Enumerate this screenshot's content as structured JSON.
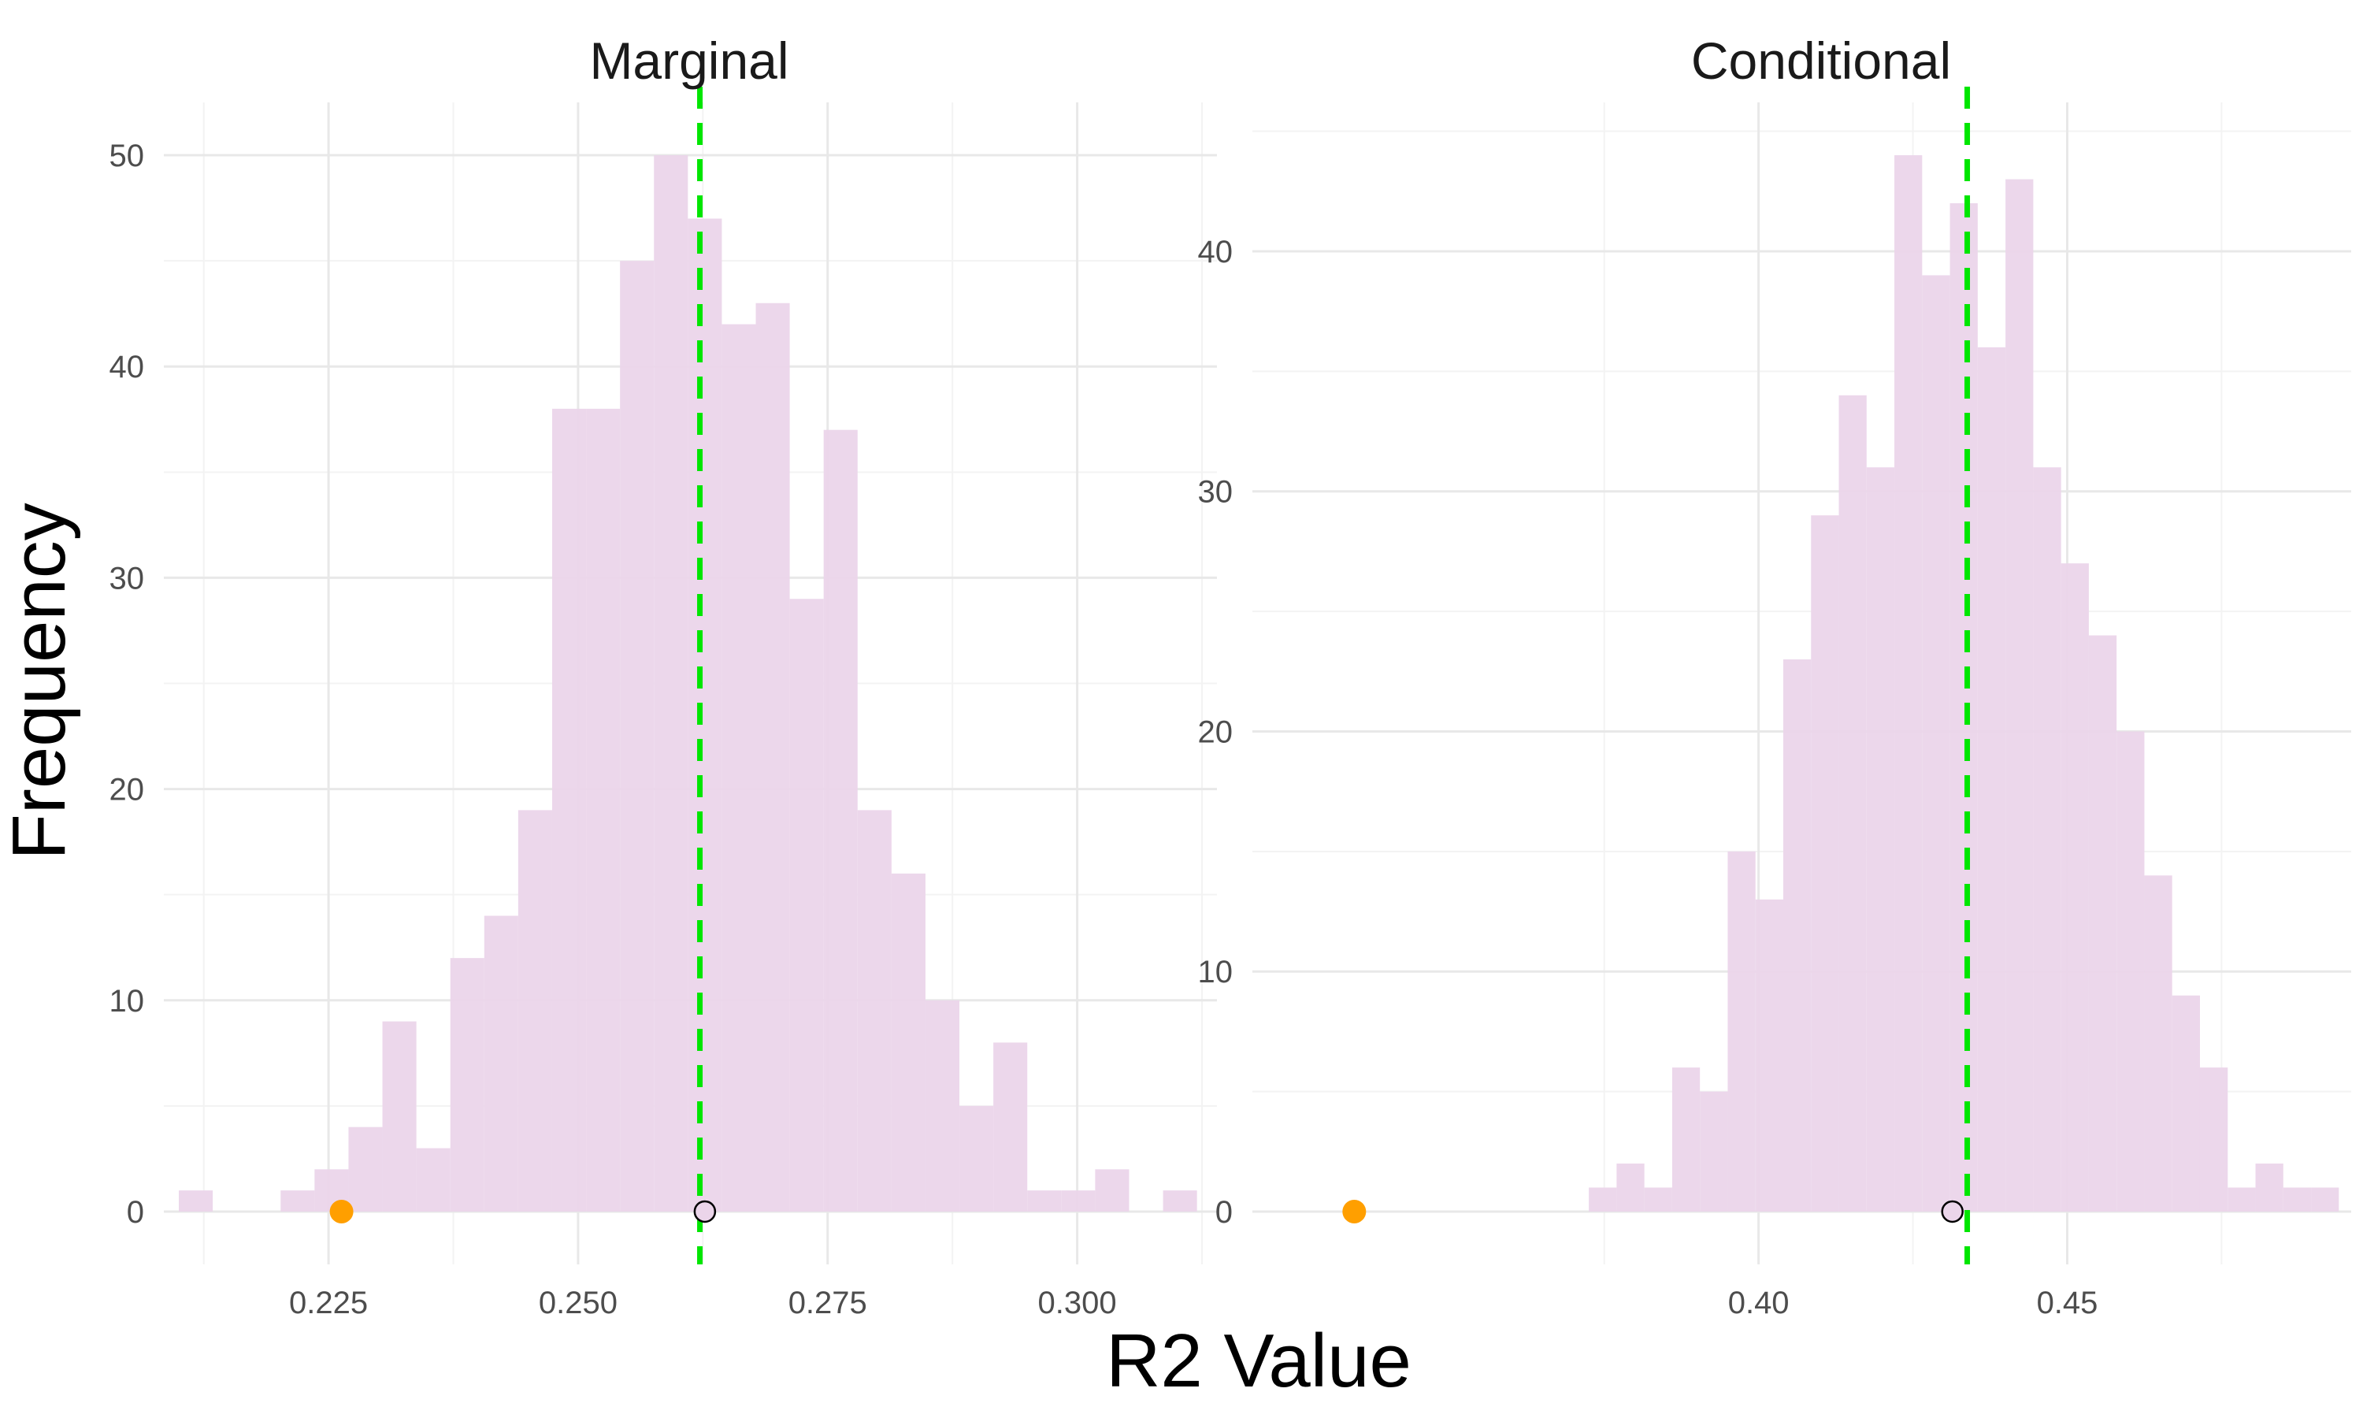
{
  "chart_data": {
    "type": "bar",
    "subtype": "histogram",
    "xlabel": "R2 Value",
    "ylabel": "Frequency",
    "grid": true,
    "legend": "none",
    "colors": {
      "bar": "#EBD5EA",
      "mean_line": "#00E600",
      "point_open_stroke": "#000000",
      "point_open_fill": "#EBD5EA",
      "point_filled": "#FF9F00",
      "grid_major": "#E8E8E8",
      "grid_minor": "#F3F3F3"
    },
    "panels": [
      {
        "title": "Marginal",
        "xlim": [
          0.2085,
          0.314
        ],
        "ylim": [
          -2.5,
          52.5
        ],
        "xticks": [
          0.225,
          0.25,
          0.275,
          0.3
        ],
        "xtick_labels": [
          "0.225",
          "0.250",
          "0.275",
          "0.300"
        ],
        "yticks": [
          0,
          10,
          20,
          30,
          40,
          50
        ],
        "ytick_labels": [
          "0",
          "10",
          "20",
          "30",
          "40",
          "50"
        ],
        "bin_start": 0.21,
        "bin_width": 0.0034,
        "counts": [
          1,
          0,
          0,
          1,
          2,
          4,
          9,
          3,
          12,
          14,
          19,
          38,
          38,
          45,
          50,
          47,
          42,
          43,
          29,
          37,
          19,
          16,
          10,
          5,
          8,
          1,
          1,
          2,
          0,
          1
        ],
        "mean_line_x": 0.2622,
        "open_point": {
          "x": 0.2627,
          "y": 0
        },
        "filled_point": {
          "x": 0.2263,
          "y": 0
        }
      },
      {
        "title": "Conditional",
        "xlim": [
          0.318,
          0.496
        ],
        "ylim": [
          -2.2,
          46.2
        ],
        "xticks": [
          0.4,
          0.45
        ],
        "xtick_labels": [
          "0.40",
          "0.45"
        ],
        "yticks": [
          0,
          10,
          20,
          30,
          40
        ],
        "ytick_labels": [
          "0",
          "10",
          "20",
          "30",
          "40"
        ],
        "bin_start": 0.3725,
        "bin_width": 0.0045,
        "counts": [
          1,
          2,
          1,
          6,
          5,
          15,
          13,
          23,
          29,
          34,
          31,
          44,
          39,
          42,
          36,
          43,
          31,
          27,
          24,
          20,
          14,
          9,
          6,
          1,
          2,
          1,
          1
        ],
        "mean_line_x": 0.4338,
        "open_point": {
          "x": 0.4314,
          "y": 0
        },
        "filled_point": {
          "x": 0.3345,
          "y": 0
        }
      }
    ]
  }
}
